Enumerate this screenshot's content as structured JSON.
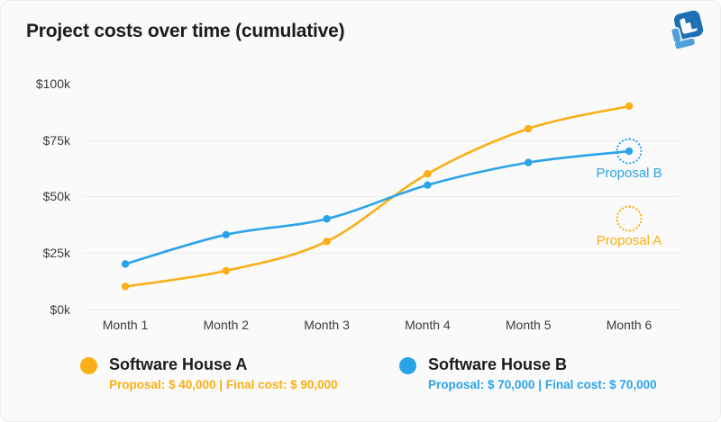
{
  "header": {
    "title": "Project costs over time (cumulative)"
  },
  "brand": {
    "logo_dark_blue": "#1C6FB4",
    "logo_light_blue": "#4DA0D8"
  },
  "chart_data": {
    "type": "line",
    "title": "Project costs over time (cumulative)",
    "categories": [
      "Month 1",
      "Month 2",
      "Month 3",
      "Month 4",
      "Month 5",
      "Month 6"
    ],
    "series": [
      {
        "name": "Software House A",
        "color": "#F9AF15",
        "values_usd_k": [
          10,
          17,
          30,
          60,
          80,
          90
        ]
      },
      {
        "name": "Software House B",
        "color": "#2BA3E8",
        "values_usd_k": [
          20,
          33,
          40,
          55,
          65,
          70
        ]
      }
    ],
    "y_axis": {
      "ticks": [
        "$0k",
        "$25k",
        "$50k",
        "$75k",
        "$100k"
      ],
      "tick_values_k": [
        0,
        25,
        50,
        75,
        100
      ],
      "range_k": [
        0,
        100
      ],
      "gridlines_at_k": [
        0,
        25,
        50,
        75
      ]
    },
    "x_axis": {
      "label": ""
    },
    "grid": "horizontal-only",
    "legend_position": "bottom",
    "annotations": [
      {
        "label": "Proposal B",
        "at_category": "Month 6",
        "value_k": 70,
        "color": "#2BA3E8"
      },
      {
        "label": "Proposal A",
        "at_category": "Month 6",
        "value_k": 40,
        "color": "#F9AF15"
      }
    ]
  },
  "legend": {
    "a": {
      "name": "Software House A",
      "detail": "Proposal: $ 40,000  |  Final cost: $ 90,000",
      "color": "#F9AF15"
    },
    "b": {
      "name": "Software House B",
      "detail": "Proposal: $ 70,000  |  Final cost: $ 70,000",
      "color": "#2BA3E8"
    }
  }
}
